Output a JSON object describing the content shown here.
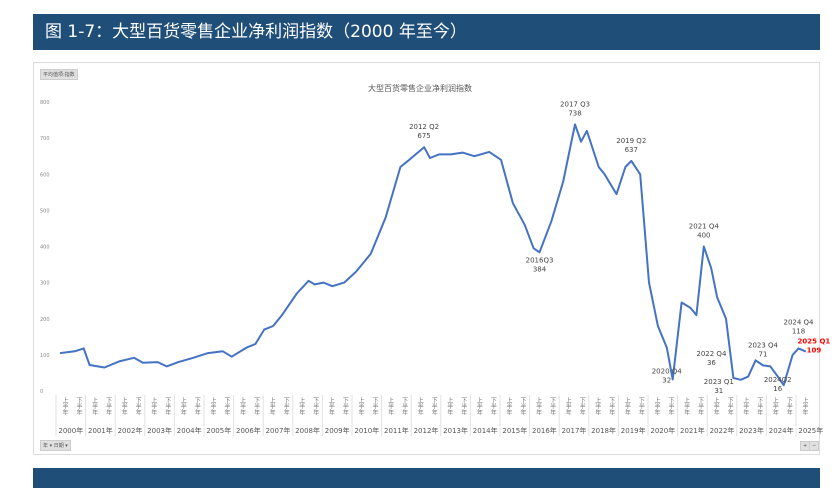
{
  "header": {
    "title": "图 1-7：大型百货零售企业净利润指数（2000 年至今）"
  },
  "controls": {
    "field_button": "平均值项:指数",
    "filter_button": "年 ▾ 日期 ▾",
    "expand": "+",
    "collapse": "−"
  },
  "chart_data": {
    "type": "line",
    "title": "大型百货零售企业净利润指数",
    "ylim": [
      0,
      800
    ],
    "yticks": [
      "0",
      "100",
      "200",
      "300",
      "400",
      "500",
      "600",
      "700",
      "800"
    ],
    "year_labels": [
      "2000年",
      "2001年",
      "2002年",
      "2003年",
      "2004年",
      "2005年",
      "2006年",
      "2007年",
      "2008年",
      "2009年",
      "2010年",
      "2011年",
      "2012年",
      "2013年",
      "2014年",
      "2015年",
      "2016年",
      "2017年",
      "2018年",
      "2019年",
      "2020年",
      "2021年",
      "2022年",
      "2023年",
      "2024年",
      "2025年"
    ],
    "half_labels": [
      "上半年",
      "下半年"
    ],
    "color": "#4472c4",
    "x": [
      2000.0,
      2000.5,
      2000.8,
      2001.0,
      2001.5,
      2002.0,
      2002.5,
      2002.8,
      2003.3,
      2003.6,
      2004.0,
      2004.5,
      2005.0,
      2005.5,
      2005.8,
      2006.3,
      2006.6,
      2006.9,
      2007.2,
      2007.5,
      2008.0,
      2008.4,
      2008.6,
      2008.9,
      2009.2,
      2009.6,
      2010.0,
      2010.5,
      2011.0,
      2011.5,
      2011.8,
      2012.3,
      2012.5,
      2012.8,
      2013.2,
      2013.6,
      2014.0,
      2014.5,
      2014.9,
      2015.3,
      2015.7,
      2016.0,
      2016.2,
      2016.6,
      2017.0,
      2017.4,
      2017.6,
      2017.8,
      2018.2,
      2018.4,
      2018.8,
      2019.1,
      2019.3,
      2019.6,
      2019.9,
      2020.2,
      2020.5,
      2020.7,
      2021.0,
      2021.3,
      2021.5,
      2021.75,
      2022.0,
      2022.2,
      2022.5,
      2022.75,
      2023.0,
      2023.25,
      2023.5,
      2023.75,
      2024.0,
      2024.25,
      2024.45,
      2024.75,
      2024.95,
      2025.2
    ],
    "y": [
      105,
      110,
      118,
      72,
      65,
      82,
      92,
      78,
      80,
      68,
      80,
      92,
      105,
      110,
      95,
      120,
      130,
      170,
      180,
      210,
      270,
      305,
      295,
      300,
      290,
      300,
      330,
      380,
      480,
      620,
      640,
      675,
      645,
      655,
      655,
      660,
      650,
      662,
      640,
      520,
      460,
      395,
      384,
      470,
      580,
      738,
      690,
      720,
      620,
      600,
      545,
      620,
      637,
      600,
      300,
      180,
      120,
      32,
      245,
      230,
      210,
      400,
      340,
      260,
      200,
      36,
      31,
      40,
      85,
      71,
      68,
      40,
      16,
      100,
      118,
      109
    ],
    "annotations": [
      {
        "x": 2012.3,
        "y": 675,
        "label": "2012 Q2",
        "value": "675",
        "pos": "above"
      },
      {
        "x": 2016.2,
        "y": 384,
        "label": "2016Q3",
        "value": "384",
        "pos": "below"
      },
      {
        "x": 2017.4,
        "y": 738,
        "label": "2017 Q3",
        "value": "738",
        "pos": "above"
      },
      {
        "x": 2019.3,
        "y": 637,
        "label": "2019 Q2",
        "value": "637",
        "pos": "above"
      },
      {
        "x": 2020.7,
        "y": 32,
        "label": "2020 Q4",
        "value": "32",
        "pos": "left"
      },
      {
        "x": 2021.75,
        "y": 400,
        "label": "2021 Q4",
        "value": "400",
        "pos": "above"
      },
      {
        "x": 2022.75,
        "y": 36,
        "label": "2022 Q4",
        "value": "36",
        "pos": "upleft"
      },
      {
        "x": 2023.0,
        "y": 31,
        "label": "2023 Q1",
        "value": "31",
        "pos": "downleft"
      },
      {
        "x": 2023.75,
        "y": 71,
        "label": "2023 Q4",
        "value": "71",
        "pos": "above"
      },
      {
        "x": 2024.45,
        "y": 16,
        "label": "2024Q2",
        "value": "16",
        "pos": "below"
      },
      {
        "x": 2024.95,
        "y": 118,
        "label": "2024 Q4",
        "value": "118",
        "pos": "above"
      },
      {
        "x": 2025.2,
        "y": 109,
        "label": "2025 Q1",
        "value": "109",
        "pos": "right",
        "highlight": "#ff0000"
      }
    ]
  }
}
